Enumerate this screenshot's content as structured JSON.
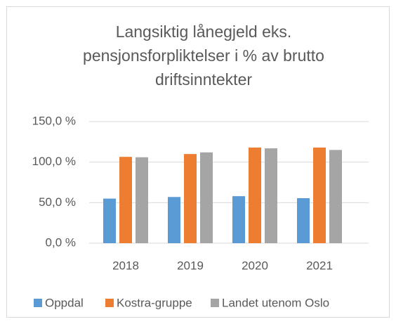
{
  "chart_data": {
    "type": "bar",
    "title": "Langsiktig lånegjeld eks. pensjonsforpliktelser i % av brutto driftsinntekter",
    "categories": [
      "2018",
      "2019",
      "2020",
      "2021"
    ],
    "series": [
      {
        "name": "Oppdal",
        "color": "#5b9bd5",
        "values": [
          55,
          57,
          58,
          55.5
        ]
      },
      {
        "name": "Kostra-gruppe",
        "color": "#ed7d31",
        "values": [
          106.5,
          110,
          118,
          118
        ]
      },
      {
        "name": "Landet utenom Oslo",
        "color": "#a5a5a5",
        "values": [
          106,
          112,
          117,
          115
        ]
      }
    ],
    "ylim": [
      0,
      150
    ],
    "yticks": [
      {
        "value": 0,
        "label": "0,0 %"
      },
      {
        "value": 50,
        "label": "50,0 %"
      },
      {
        "value": 100,
        "label": "100,0 %"
      },
      {
        "value": 150,
        "label": "150,0 %"
      }
    ],
    "grid": true,
    "legend": "bottom"
  }
}
